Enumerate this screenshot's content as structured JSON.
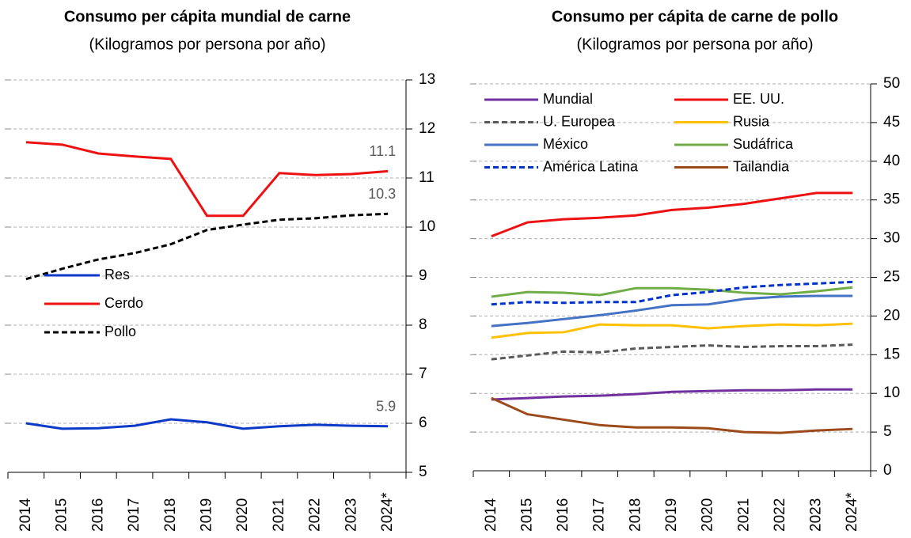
{
  "chart_data": [
    {
      "type": "line",
      "title": "Consumo per cápita mundial de carne",
      "subtitle": "(Kilogramos por persona por año)",
      "categories": [
        "2014",
        "2015",
        "2016",
        "2017",
        "2018",
        "2019",
        "2020",
        "2021",
        "2022",
        "2023",
        "2024*"
      ],
      "series": [
        {
          "name": "Res",
          "color": "#0b39c8",
          "dash": false,
          "values": [
            6.0,
            5.89,
            5.9,
            5.95,
            6.08,
            6.02,
            5.89,
            5.94,
            5.97,
            5.95,
            5.94
          ],
          "value_labels": [
            null,
            null,
            null,
            null,
            null,
            null,
            null,
            null,
            null,
            null,
            "5.9"
          ]
        },
        {
          "name": "Cerdo",
          "color": "#ee1111",
          "dash": false,
          "values": [
            11.73,
            11.68,
            11.5,
            11.44,
            11.39,
            10.23,
            10.23,
            11.1,
            11.06,
            11.08,
            11.14
          ],
          "value_labels": [
            null,
            null,
            null,
            null,
            null,
            null,
            null,
            null,
            null,
            null,
            "11.1"
          ]
        },
        {
          "name": "Pollo",
          "color": "#000000",
          "dash": true,
          "values": [
            8.94,
            9.15,
            9.34,
            9.47,
            9.65,
            9.94,
            10.05,
            10.15,
            10.18,
            10.24,
            10.27
          ],
          "value_labels": [
            null,
            null,
            null,
            null,
            null,
            null,
            null,
            null,
            null,
            null,
            "10.3"
          ]
        }
      ],
      "ylim": [
        5,
        13
      ],
      "yticks": [
        5,
        6,
        7,
        8,
        9,
        10,
        11,
        12,
        13
      ],
      "y_axis_side": "right",
      "grid": true,
      "legend": "center left"
    },
    {
      "type": "line",
      "title": "Consumo per cápita de carne de pollo",
      "subtitle": "(Kilogramos por persona por año)",
      "categories": [
        "2014",
        "2015",
        "2016",
        "2017",
        "2018",
        "2019",
        "2020",
        "2021",
        "2022",
        "2023",
        "2024*"
      ],
      "series": [
        {
          "name": "Mundial",
          "color": "#7030a0",
          "dash": false,
          "values": [
            9.2,
            9.4,
            9.6,
            9.7,
            9.9,
            10.2,
            10.3,
            10.4,
            10.4,
            10.5,
            10.5
          ]
        },
        {
          "name": "EE. UU.",
          "color": "#ee1111",
          "dash": false,
          "values": [
            30.3,
            32.1,
            32.5,
            32.7,
            33.0,
            33.7,
            34.0,
            34.5,
            35.2,
            35.9,
            35.9
          ]
        },
        {
          "name": "U. Europea",
          "color": "#595959",
          "dash": true,
          "values": [
            14.4,
            14.9,
            15.4,
            15.3,
            15.8,
            16.0,
            16.2,
            16.0,
            16.1,
            16.1,
            16.3
          ]
        },
        {
          "name": "Rusia",
          "color": "#ffc000",
          "dash": false,
          "values": [
            17.2,
            17.8,
            17.9,
            18.9,
            18.8,
            18.8,
            18.4,
            18.7,
            18.9,
            18.8,
            19.0
          ]
        },
        {
          "name": "México",
          "color": "#4472c4",
          "dash": false,
          "values": [
            18.7,
            19.1,
            19.6,
            20.1,
            20.7,
            21.4,
            21.5,
            22.2,
            22.5,
            22.6,
            22.6
          ]
        },
        {
          "name": "Sudáfrica",
          "color": "#70ad47",
          "dash": false,
          "values": [
            22.5,
            23.1,
            23.0,
            22.7,
            23.6,
            23.6,
            23.4,
            23.0,
            22.8,
            23.2,
            23.7
          ]
        },
        {
          "name": "América Latina",
          "color": "#0033cc",
          "dash": true,
          "values": [
            21.5,
            21.8,
            21.7,
            21.8,
            21.8,
            22.7,
            23.1,
            23.7,
            24.0,
            24.2,
            24.4
          ]
        },
        {
          "name": "Tailandia",
          "color": "#9c4a1a",
          "dash": false,
          "values": [
            9.4,
            7.3,
            6.6,
            5.9,
            5.6,
            5.6,
            5.5,
            5.0,
            4.9,
            5.2,
            5.4
          ]
        }
      ],
      "ylim": [
        0,
        50
      ],
      "yticks": [
        0,
        5,
        10,
        15,
        20,
        25,
        30,
        35,
        40,
        45,
        50
      ],
      "y_axis_side": "right",
      "grid": true,
      "legend": "upper left"
    }
  ]
}
